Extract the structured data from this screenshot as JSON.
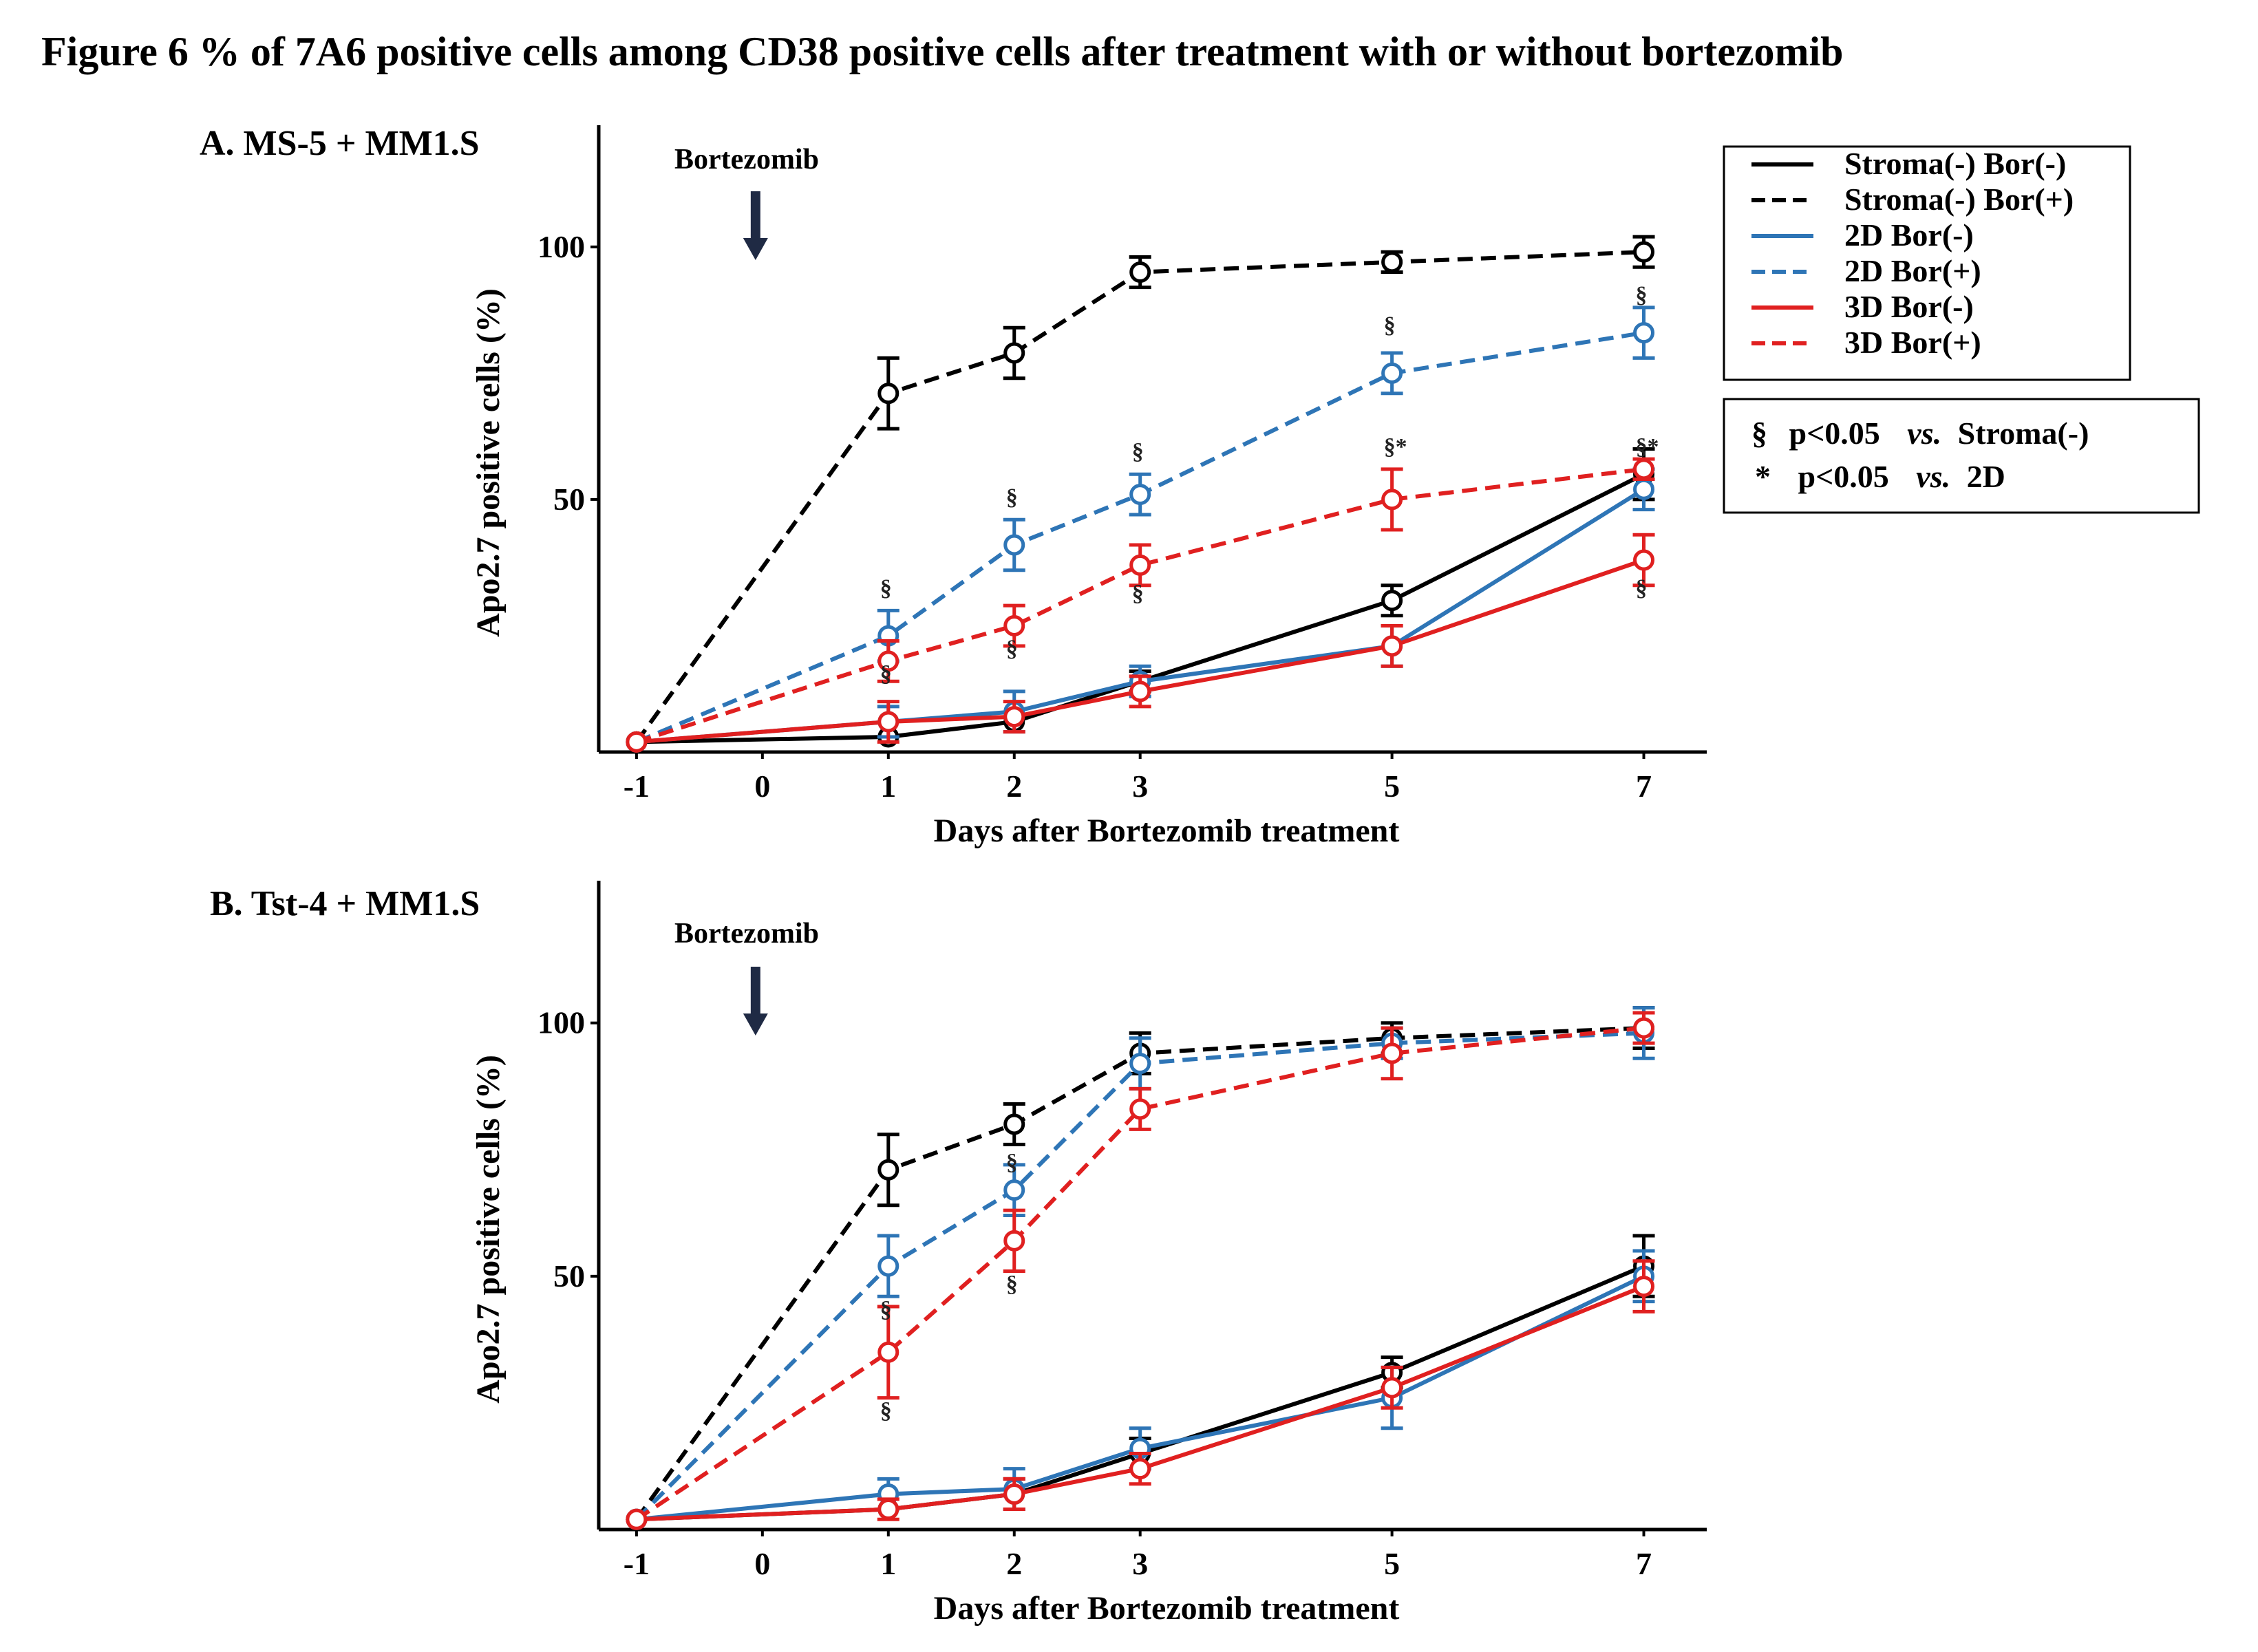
{
  "figure": {
    "title": "Figure 6  % of 7A6 positive cells among CD38 positive cells after treatment with or without bortezomib"
  },
  "legend": {
    "entries": [
      {
        "label": "Stroma(-) Bor(-)",
        "color": "#000000",
        "dash": false
      },
      {
        "label": "Stroma(-) Bor(+)",
        "color": "#000000",
        "dash": true
      },
      {
        "label": "2D Bor(-)",
        "color": "#2e75b6",
        "dash": false
      },
      {
        "label": "2D Bor(+)",
        "color": "#2e75b6",
        "dash": true
      },
      {
        "label": "3D Bor(-)",
        "color": "#e02020",
        "dash": false
      },
      {
        "label": "3D Bor(+)",
        "color": "#e02020",
        "dash": true
      }
    ],
    "significance": [
      {
        "symbol": "§",
        "text": "p<0.05",
        "vs": "vs.",
        "ref": "Stroma(-)"
      },
      {
        "symbol": "*",
        "text": "p<0.05",
        "vs": "vs.",
        "ref": "2D"
      }
    ]
  },
  "chart_data": [
    {
      "type": "line",
      "panel_label": "A. MS-5 + MM1.S",
      "annotation": {
        "text": "Bortezomib",
        "x": 0
      },
      "xlabel": "Days after Bortezomib treatment",
      "ylabel": "Apo2.7 positive cells (%)",
      "x_ticks": [
        -1,
        0,
        1,
        2,
        3,
        5,
        7
      ],
      "x_tick_labels": [
        "-1",
        "0",
        "1",
        "2",
        "3",
        "5",
        "7"
      ],
      "y_ticks": [
        50,
        100
      ],
      "y_tick_labels": [
        "50",
        "100"
      ],
      "xlim": [
        -1.3,
        7.5
      ],
      "ylim": [
        0,
        120
      ],
      "series": [
        {
          "name": "Stroma(-) Bor(-)",
          "color": "#000000",
          "dash": false,
          "x": [
            -1,
            1,
            2,
            3,
            5,
            7
          ],
          "y": [
            2,
            3,
            6,
            14,
            30,
            55
          ],
          "err": [
            0,
            0,
            0,
            2,
            3,
            5
          ]
        },
        {
          "name": "Stroma(-) Bor(+)",
          "color": "#000000",
          "dash": true,
          "x": [
            -1,
            1,
            2,
            3,
            5,
            7
          ],
          "y": [
            2,
            71,
            79,
            95,
            97,
            99
          ],
          "err": [
            0,
            7,
            5,
            3,
            2,
            3
          ]
        },
        {
          "name": "2D Bor(-)",
          "color": "#2e75b6",
          "dash": false,
          "x": [
            -1,
            1,
            2,
            3,
            5,
            7
          ],
          "y": [
            2,
            6,
            8,
            14,
            21,
            52
          ],
          "err": [
            0,
            3,
            4,
            3,
            4,
            4
          ]
        },
        {
          "name": "2D Bor(+)",
          "color": "#2e75b6",
          "dash": true,
          "x": [
            -1,
            1,
            2,
            3,
            5,
            7
          ],
          "y": [
            2,
            23,
            41,
            51,
            75,
            83
          ],
          "err": [
            0,
            5,
            5,
            4,
            4,
            5
          ]
        },
        {
          "name": "3D Bor(-)",
          "color": "#e02020",
          "dash": false,
          "x": [
            -1,
            1,
            2,
            3,
            5,
            7
          ],
          "y": [
            2,
            6,
            7,
            12,
            21,
            38
          ],
          "err": [
            0,
            4,
            3,
            3,
            4,
            5
          ]
        },
        {
          "name": "3D Bor(+)",
          "color": "#e02020",
          "dash": true,
          "x": [
            -1,
            1,
            2,
            3,
            5,
            7
          ],
          "y": [
            2,
            18,
            25,
            37,
            50,
            56
          ],
          "err": [
            0,
            4,
            4,
            4,
            6,
            2
          ]
        }
      ],
      "sig_marks": [
        {
          "x": 1,
          "y": 31,
          "text": "§",
          "color": "#2e75b6"
        },
        {
          "x": 1,
          "y": 14,
          "text": "§",
          "color": "#e02020"
        },
        {
          "x": 2,
          "y": 49,
          "text": "§",
          "color": "#2e75b6"
        },
        {
          "x": 2,
          "y": 19,
          "text": "§",
          "color": "#e02020"
        },
        {
          "x": 3,
          "y": 58,
          "text": "§",
          "color": "#2e75b6"
        },
        {
          "x": 3,
          "y": 30,
          "text": "§",
          "color": "#e02020"
        },
        {
          "x": 5,
          "y": 83,
          "text": "§",
          "color": "#2e75b6"
        },
        {
          "x": 5,
          "y": 59,
          "text": "§*",
          "color": "#e02020"
        },
        {
          "x": 7,
          "y": 89,
          "text": "§",
          "color": "#2e75b6"
        },
        {
          "x": 7,
          "y": 59,
          "text": "§*",
          "color": "#e02020"
        },
        {
          "x": 7,
          "y": 31,
          "text": "§",
          "color": "#e02020"
        }
      ]
    },
    {
      "type": "line",
      "panel_label": "B. Tst-4 + MM1.S",
      "annotation": {
        "text": "Bortezomib",
        "x": 0
      },
      "xlabel": "Days after Bortezomib treatment",
      "ylabel": "Apo2.7 positive cells (%)",
      "x_ticks": [
        -1,
        0,
        1,
        2,
        3,
        5,
        7
      ],
      "x_tick_labels": [
        "-1",
        "0",
        "1",
        "2",
        "3",
        "5",
        "7"
      ],
      "y_ticks": [
        50,
        100
      ],
      "y_tick_labels": [
        "50",
        "100"
      ],
      "xlim": [
        -1.3,
        7.5
      ],
      "ylim": [
        0,
        124
      ],
      "series": [
        {
          "name": "Stroma(-) Bor(-)",
          "color": "#000000",
          "dash": false,
          "x": [
            -1,
            1,
            2,
            3,
            5,
            7
          ],
          "y": [
            2,
            4,
            7,
            15,
            31,
            52
          ],
          "err": [
            0,
            0,
            3,
            3,
            3,
            6
          ]
        },
        {
          "name": "Stroma(-) Bor(+)",
          "color": "#000000",
          "dash": true,
          "x": [
            -1,
            1,
            2,
            3,
            5,
            7
          ],
          "y": [
            2,
            71,
            80,
            94,
            97,
            99
          ],
          "err": [
            0,
            7,
            4,
            4,
            3,
            4
          ]
        },
        {
          "name": "2D Bor(-)",
          "color": "#2e75b6",
          "dash": false,
          "x": [
            -1,
            1,
            2,
            3,
            5,
            7
          ],
          "y": [
            2,
            7,
            8,
            16,
            26,
            50
          ],
          "err": [
            0,
            3,
            4,
            4,
            6,
            5
          ]
        },
        {
          "name": "2D Bor(+)",
          "color": "#2e75b6",
          "dash": true,
          "x": [
            -1,
            1,
            2,
            3,
            5,
            7
          ],
          "y": [
            2,
            52,
            67,
            92,
            96,
            98
          ],
          "err": [
            0,
            6,
            5,
            5,
            3,
            5
          ]
        },
        {
          "name": "3D Bor(-)",
          "color": "#e02020",
          "dash": false,
          "x": [
            -1,
            1,
            2,
            3,
            5,
            7
          ],
          "y": [
            2,
            4,
            7,
            12,
            28,
            48
          ],
          "err": [
            0,
            2,
            3,
            3,
            4,
            5
          ]
        },
        {
          "name": "3D Bor(+)",
          "color": "#e02020",
          "dash": true,
          "x": [
            -1,
            1,
            2,
            3,
            5,
            7
          ],
          "y": [
            2,
            35,
            57,
            83,
            94,
            99
          ],
          "err": [
            0,
            9,
            6,
            4,
            5,
            3
          ]
        }
      ],
      "sig_marks": [
        {
          "x": 1,
          "y": 42,
          "text": "§",
          "color": "#2e75b6"
        },
        {
          "x": 1,
          "y": 22,
          "text": "§",
          "color": "#e02020"
        },
        {
          "x": 2,
          "y": 71,
          "text": "§",
          "color": "#2e75b6"
        },
        {
          "x": 2,
          "y": 47,
          "text": "§",
          "color": "#e02020"
        }
      ]
    }
  ]
}
